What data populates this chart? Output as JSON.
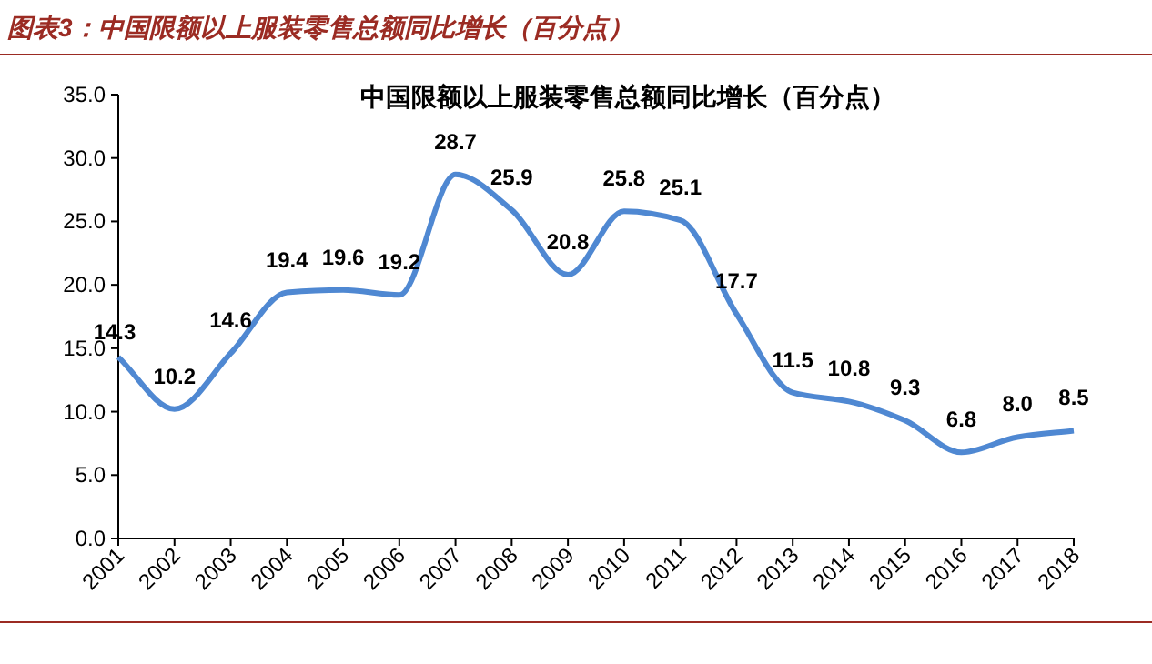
{
  "chart_data": {
    "type": "line",
    "title": "图表3：中国限额以上服装零售总额同比增长（百分点）",
    "subtitle": "中国限额以上服装零售总额同比增长（百分点）",
    "categories": [
      "2001",
      "2002",
      "2003",
      "2004",
      "2005",
      "2006",
      "2007",
      "2008",
      "2009",
      "2010",
      "2011",
      "2012",
      "2013",
      "2014",
      "2015",
      "2016",
      "2017",
      "2018"
    ],
    "series": [
      {
        "color": "#4f88d2",
        "values": [
          14.3,
          10.2,
          14.6,
          19.4,
          19.6,
          19.2,
          28.7,
          25.9,
          20.8,
          25.8,
          25.1,
          17.7,
          11.5,
          10.8,
          9.3,
          6.8,
          8.0,
          8.5
        ]
      }
    ],
    "ylim": [
      0,
      35
    ],
    "yticks": [
      {
        "value": 0,
        "label": "0.0"
      },
      {
        "value": 5,
        "label": "5.0"
      },
      {
        "value": 10,
        "label": "10.0"
      },
      {
        "value": 15,
        "label": "15.0"
      },
      {
        "value": 20,
        "label": "20.0"
      },
      {
        "value": 25,
        "label": "25.0"
      },
      {
        "value": 30,
        "label": "30.0"
      },
      {
        "value": 35,
        "label": "35.0"
      }
    ],
    "value_labels": [
      "14.3",
      "10.2",
      "14.6",
      "19.4",
      "19.6",
      "19.2",
      "28.7",
      "25.9",
      "20.8",
      "25.8",
      "25.1",
      "17.7",
      "11.5",
      "10.8",
      "9.3",
      "6.8",
      "8.0",
      "8.5"
    ],
    "line_style": "solid"
  }
}
